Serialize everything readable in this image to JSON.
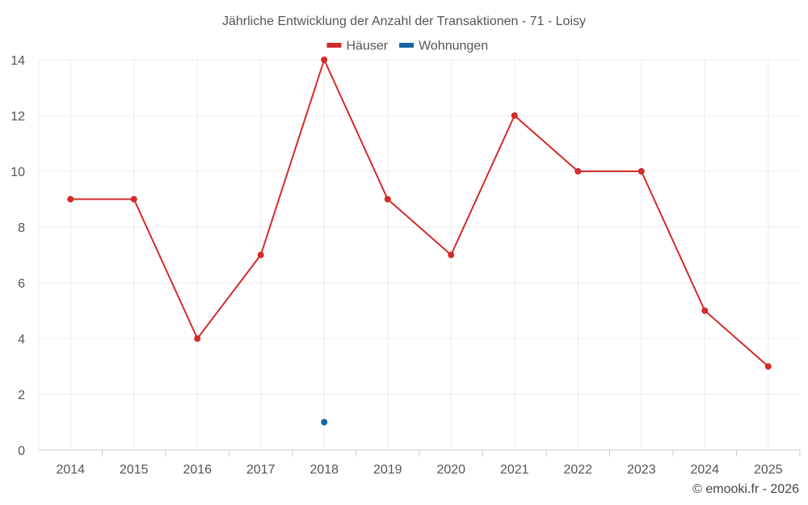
{
  "chart_data": {
    "type": "line",
    "title": "Jährliche Entwicklung der Anzahl der Transaktionen - 71 - Loisy",
    "xlabel": "",
    "ylabel": "",
    "categories": [
      "2014",
      "2015",
      "2016",
      "2017",
      "2018",
      "2019",
      "2020",
      "2021",
      "2022",
      "2023",
      "2024",
      "2025"
    ],
    "ylim": [
      0,
      14
    ],
    "yticks": [
      "0",
      "2",
      "4",
      "6",
      "8",
      "10",
      "12",
      "14"
    ],
    "grid": true,
    "legend_position": "top-center",
    "series": [
      {
        "name": "Häuser",
        "color": "#d32a2a",
        "values": [
          9,
          9,
          4,
          7,
          14,
          9,
          7,
          12,
          10,
          10,
          5,
          3
        ]
      },
      {
        "name": "Wohnungen",
        "color": "#1565a6",
        "values": [
          null,
          null,
          null,
          null,
          1,
          null,
          null,
          null,
          null,
          null,
          null,
          null
        ]
      }
    ]
  },
  "credit": "© emooki.fr - 2026"
}
